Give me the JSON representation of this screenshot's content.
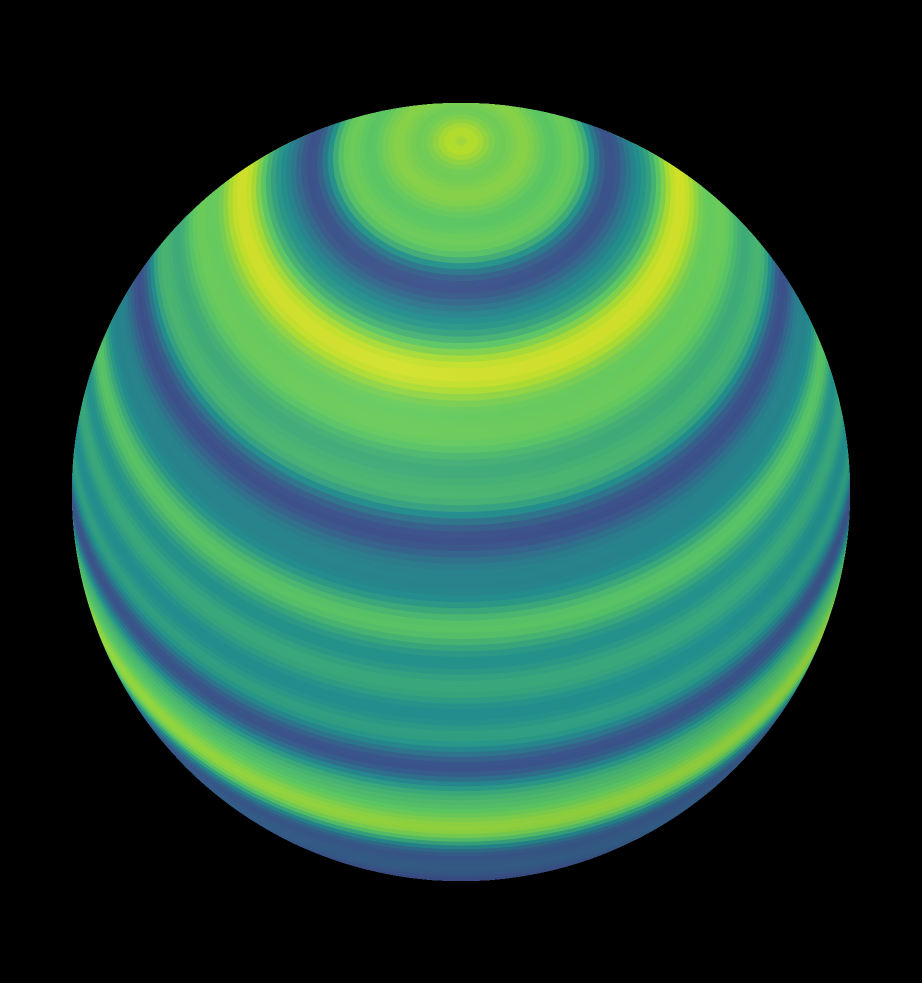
{
  "scene": {
    "background_color": "#000000",
    "subject": "banded-sphere",
    "colormap": "viridis",
    "colormap_stops": [
      "#440154",
      "#3b528b",
      "#21908d",
      "#5dc962",
      "#b5de2b",
      "#fde725"
    ],
    "pole_visible": "top"
  }
}
